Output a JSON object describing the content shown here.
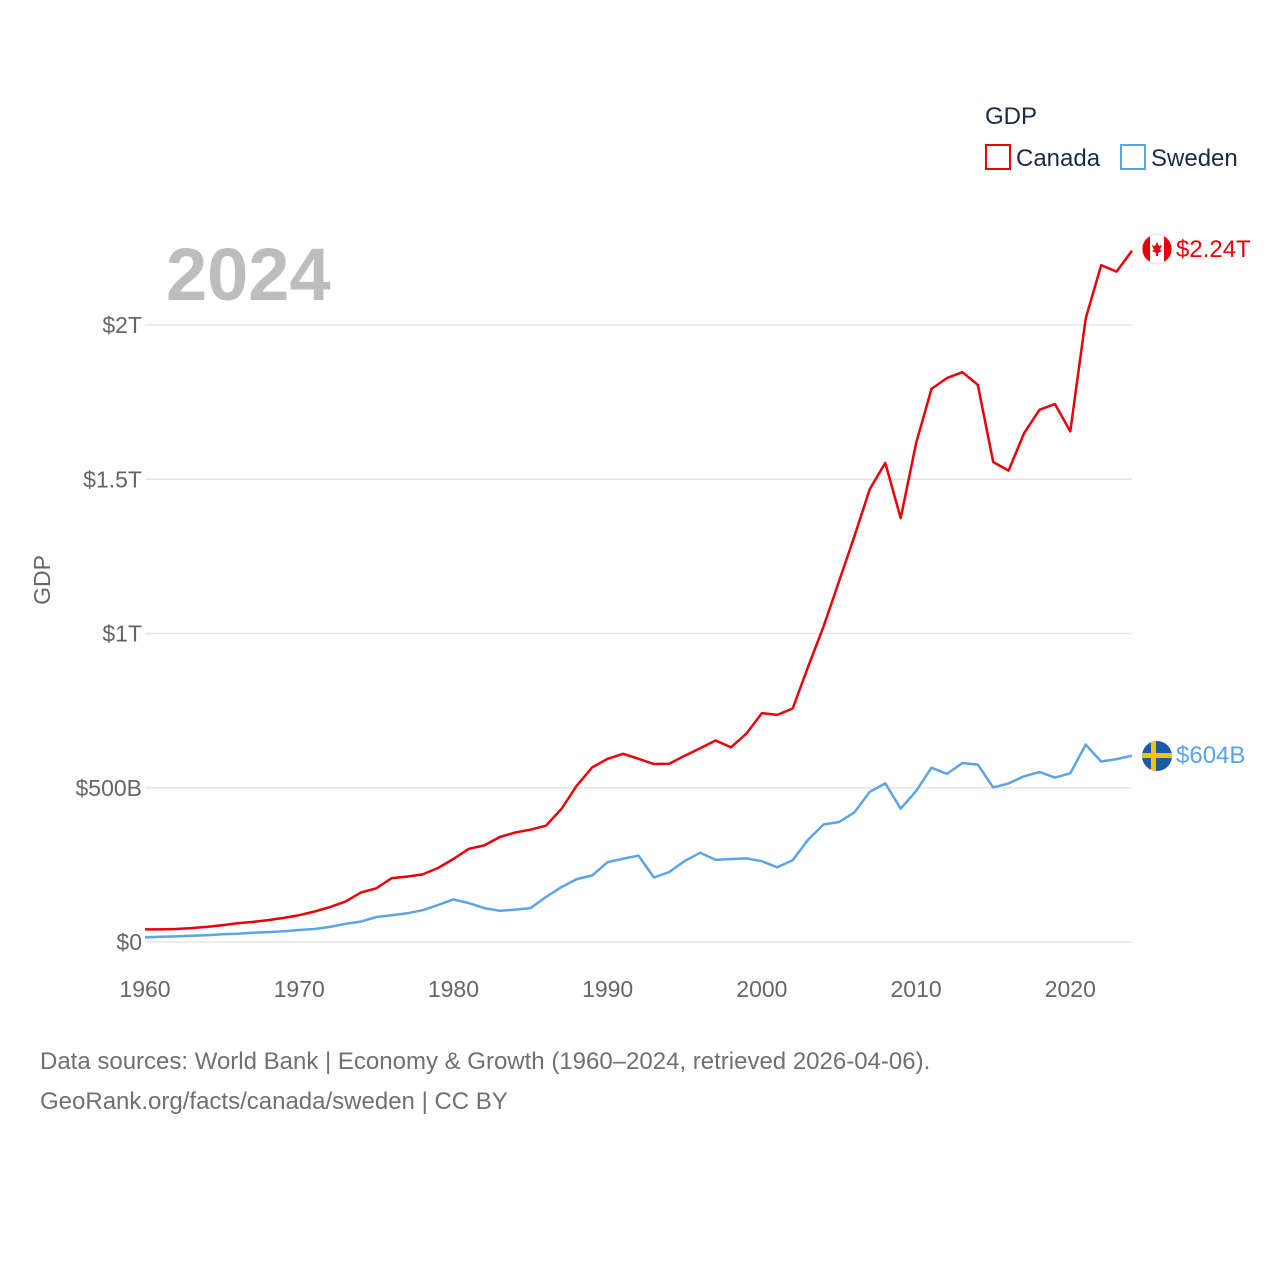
{
  "chart_data": {
    "type": "line",
    "title": "GDP",
    "highlight_year": "2024",
    "ylabel": "GDP",
    "xlabel": "",
    "x_ticks": [
      "1960",
      "1970",
      "1980",
      "1990",
      "2000",
      "2010",
      "2020"
    ],
    "y_ticks": [
      {
        "value": 0,
        "label": "$0"
      },
      {
        "value": 500,
        "label": "$500B"
      },
      {
        "value": 1000,
        "label": "$1T"
      },
      {
        "value": 1500,
        "label": "$1.5T"
      },
      {
        "value": 2000,
        "label": "$2T"
      }
    ],
    "xlim": [
      1960,
      2024
    ],
    "ylim": [
      0,
      2200
    ],
    "units": "billions USD",
    "x": [
      1960,
      1961,
      1962,
      1963,
      1964,
      1965,
      1966,
      1967,
      1968,
      1969,
      1970,
      1971,
      1972,
      1973,
      1974,
      1975,
      1976,
      1977,
      1978,
      1979,
      1980,
      1981,
      1982,
      1983,
      1984,
      1985,
      1986,
      1987,
      1988,
      1989,
      1990,
      1991,
      1992,
      1993,
      1994,
      1995,
      1996,
      1997,
      1998,
      1999,
      2000,
      2001,
      2002,
      2003,
      2004,
      2005,
      2006,
      2007,
      2008,
      2009,
      2010,
      2011,
      2012,
      2013,
      2014,
      2015,
      2016,
      2017,
      2018,
      2019,
      2020,
      2021,
      2022,
      2023,
      2024
    ],
    "series": [
      {
        "name": "Canada",
        "color": "#e8000b",
        "flag": "canada-flag-icon",
        "end_label": "$2.24T",
        "values": [
          41,
          41,
          42,
          45,
          49,
          54,
          61,
          65,
          71,
          78,
          87,
          99,
          113,
          131,
          160,
          174,
          207,
          212,
          219,
          240,
          269,
          302,
          313,
          340,
          355,
          364,
          377,
          431,
          507,
          566,
          594,
          610,
          594,
          577,
          578,
          604,
          628,
          653,
          631,
          676,
          742,
          736,
          757,
          892,
          1023,
          1169,
          1315,
          1468,
          1553,
          1374,
          1617,
          1793,
          1828,
          1847,
          1806,
          1556,
          1528,
          1649,
          1725,
          1744,
          1655,
          2021,
          2194,
          2173,
          2241
        ]
      },
      {
        "name": "Sweden",
        "color": "#5ba4e5",
        "flag": "sweden-flag-icon",
        "end_label": "$604B",
        "values": [
          15,
          17,
          18,
          20,
          22,
          25,
          27,
          30,
          32,
          35,
          39,
          42,
          49,
          59,
          66,
          81,
          87,
          93,
          103,
          120,
          138,
          126,
          110,
          101,
          105,
          110,
          146,
          178,
          204,
          216,
          259,
          270,
          280,
          209,
          227,
          263,
          289,
          266,
          269,
          271,
          262,
          242,
          265,
          332,
          381,
          389,
          420,
          487,
          514,
          432,
          489,
          565,
          545,
          580,
          575,
          501,
          514,
          537,
          551,
          533,
          547,
          640,
          585,
          593,
          604
        ]
      }
    ]
  },
  "legend": {
    "title": "GDP",
    "items": [
      "Canada",
      "Sweden"
    ]
  },
  "footer": {
    "line1": "Data sources: World Bank | Economy & Growth (1960–2024, retrieved 2026-04-06).",
    "line2": "GeoRank.org/facts/canada/sweden | CC BY"
  }
}
